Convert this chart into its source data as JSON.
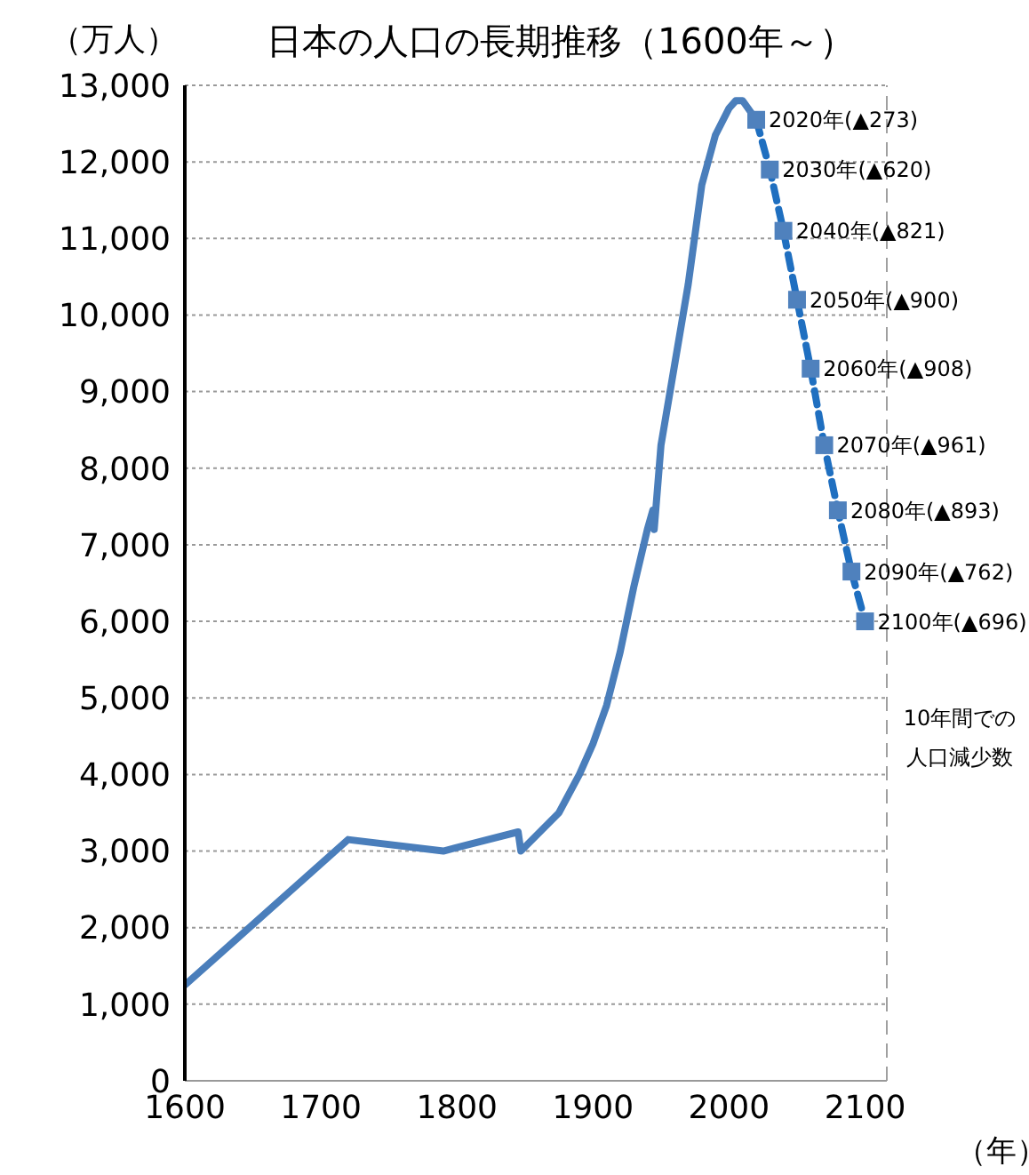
{
  "chart_data": {
    "type": "line",
    "title": "日本の人口の長期推移（1600年～）",
    "ylabel": "（万人）",
    "xlabel": "（年）",
    "xlim": [
      1600,
      2116
    ],
    "xticks": [
      1600,
      1700,
      1800,
      1900,
      2000,
      2100
    ],
    "ylim": [
      0,
      13000
    ],
    "yticks": [
      0,
      {
        "value": 1000,
        "label": "1,000"
      },
      {
        "value": 2000,
        "label": "2,000"
      },
      {
        "value": 3000,
        "label": "3,000"
      },
      {
        "value": 4000,
        "label": "4,000"
      },
      {
        "value": 5000,
        "label": "5,000"
      },
      {
        "value": 6000,
        "label": "6,000"
      },
      {
        "value": 7000,
        "label": "7,000"
      },
      {
        "value": 8000,
        "label": "8,000"
      },
      {
        "value": 9000,
        "label": "9,000"
      },
      {
        "value": 10000,
        "label": "10,000"
      },
      {
        "value": 11000,
        "label": "11,000"
      },
      {
        "value": 12000,
        "label": "12,000"
      },
      {
        "value": 13000,
        "label": "13,000"
      }
    ],
    "grid": "y",
    "series": [
      {
        "color": "#4a7ebb",
        "line_style": "solid",
        "marker": "none",
        "x": [
          1600,
          1720,
          1790,
          1845,
          1847,
          1875,
          1890,
          1900,
          1910,
          1920,
          1930,
          1940,
          1944,
          1945,
          1950,
          1960,
          1970,
          1980,
          1990,
          2000,
          2005,
          2010,
          2020
        ],
        "values": [
          1250,
          3150,
          3000,
          3250,
          3000,
          3500,
          4000,
          4400,
          4900,
          5600,
          6450,
          7200,
          7450,
          7200,
          8300,
          9350,
          10400,
          11700,
          12350,
          12700,
          12800,
          12800,
          12550
        ]
      },
      {
        "color": "#1f6fc0",
        "line_style": "dashed",
        "marker": "square",
        "x": [
          2020,
          2030,
          2040,
          2050,
          2060,
          2070,
          2080,
          2090,
          2100
        ],
        "values": [
          12550,
          11900,
          11100,
          10200,
          9300,
          8300,
          7450,
          6650,
          6000
        ]
      }
    ],
    "ref_lines": [
      {
        "axis": "x",
        "value": 2116,
        "color": "#a0a0a0",
        "line_style": "dashed"
      }
    ],
    "annotations": [
      {
        "text": "2020年(▲273)",
        "x": 2020,
        "y": 12550
      },
      {
        "text": "2030年(▲620)",
        "x": 2030,
        "y": 11900
      },
      {
        "text": "2040年(▲821)",
        "x": 2040,
        "y": 11100
      },
      {
        "text": "2050年(▲900)",
        "x": 2050,
        "y": 10200
      },
      {
        "text": "2060年(▲908)",
        "x": 2060,
        "y": 9300
      },
      {
        "text": "2070年(▲961)",
        "x": 2070,
        "y": 8300
      },
      {
        "text": "2080年(▲893)",
        "x": 2080,
        "y": 7450
      },
      {
        "text": "2090年(▲762)",
        "x": 2090,
        "y": 6650
      },
      {
        "text": "2100年(▲696)",
        "x": 2100,
        "y": 6000
      },
      "10年間での人口減少数"
    ]
  }
}
